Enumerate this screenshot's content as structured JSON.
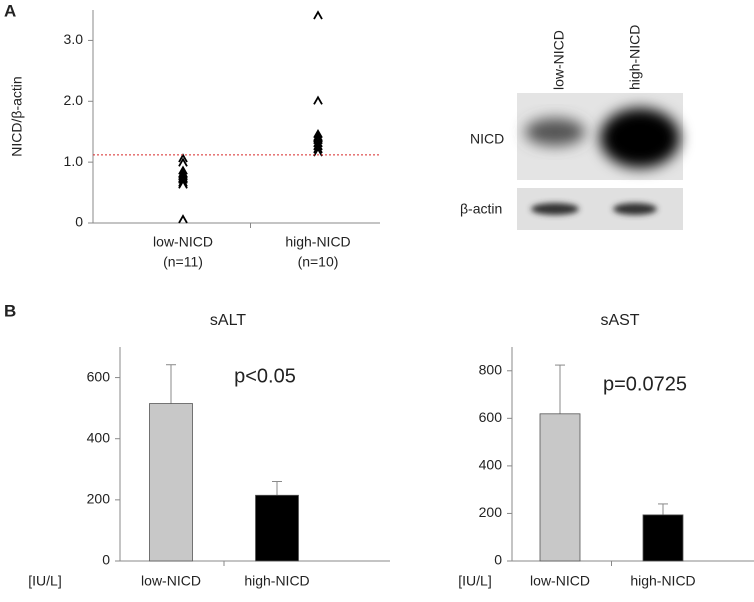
{
  "panels": [
    "A",
    "B"
  ],
  "chart_data": [
    {
      "type": "scatter",
      "ylabel": "NICD/β-actin",
      "categories": [
        "low-NICD",
        "high-NICD"
      ],
      "category_notes": [
        "(n=11)",
        "(n=10)"
      ],
      "marker": "^",
      "color": "#000000",
      "series": [
        {
          "values": [
            1.05,
            0.98,
            0.85,
            0.8,
            0.78,
            0.75,
            0.72,
            0.7,
            0.65,
            0.62,
            0.05
          ]
        },
        {
          "values": [
            3.4,
            2.0,
            1.45,
            1.4,
            1.38,
            1.35,
            1.3,
            1.25,
            1.2,
            1.15
          ]
        }
      ],
      "threshold": 1.12,
      "threshold_color": "#d62728",
      "ylim": [
        0,
        3.5
      ],
      "yticks": [
        0,
        {
          "value": 1,
          "label": "1.0"
        },
        {
          "value": 2,
          "label": "2.0"
        },
        {
          "value": 3,
          "label": "3.0"
        }
      ],
      "blot": {
        "lanes": [
          "low-NICD",
          "high-NICD"
        ],
        "bands": [
          "NICD",
          "β-actin"
        ]
      }
    },
    {
      "type": "bar",
      "title": "sALT",
      "annotation": "p<0.05",
      "unit_label": "[IU/L]",
      "categories": [
        "low-NICD",
        "high-NICD"
      ],
      "values": [
        515,
        215
      ],
      "errors": [
        127,
        45
      ],
      "colors": [
        "#c8c8c8",
        "#000000"
      ],
      "ylim": [
        0,
        700
      ],
      "yticks": [
        0,
        200,
        400,
        600
      ]
    },
    {
      "type": "bar",
      "title": "sAST",
      "annotation": "p=0.0725",
      "unit_label": "[IU/L]",
      "categories": [
        "low-NICD",
        "high-NICD"
      ],
      "values": [
        619,
        194
      ],
      "errors": [
        205,
        46
      ],
      "colors": [
        "#c8c8c8",
        "#000000"
      ],
      "ylim": [
        0,
        900
      ],
      "yticks": [
        0,
        200,
        400,
        600,
        800
      ]
    }
  ]
}
